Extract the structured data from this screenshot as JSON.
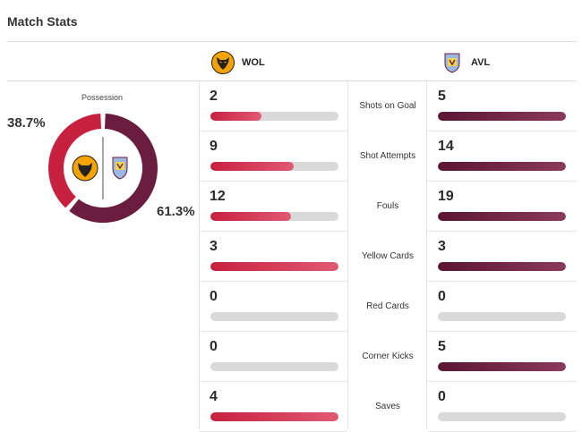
{
  "header": {
    "title": "Match Stats"
  },
  "teams": {
    "home": {
      "abbr": "WOL",
      "crest_icon": "wolves-crest-icon",
      "color": "#c8203f",
      "crest_bg": "#f5a300"
    },
    "away": {
      "abbr": "AVL",
      "crest_icon": "aston-villa-crest-icon",
      "color": "#6b1d3f",
      "crest_bg": "#9bb8e3"
    }
  },
  "possession": {
    "label": "Possession",
    "home_text": "38.7%",
    "away_text": "61.3%"
  },
  "stats": [
    {
      "label": "Shots on Goal",
      "home": "2",
      "away": "5"
    },
    {
      "label": "Shot Attempts",
      "home": "9",
      "away": "14"
    },
    {
      "label": "Fouls",
      "home": "12",
      "away": "19"
    },
    {
      "label": "Yellow Cards",
      "home": "3",
      "away": "3"
    },
    {
      "label": "Red Cards",
      "home": "0",
      "away": "0"
    },
    {
      "label": "Corner Kicks",
      "home": "0",
      "away": "5"
    },
    {
      "label": "Saves",
      "home": "4",
      "away": "0"
    }
  ],
  "chart_data": {
    "type": "bar",
    "title": "Match Stats",
    "categories": [
      "Shots on Goal",
      "Shot Attempts",
      "Fouls",
      "Yellow Cards",
      "Red Cards",
      "Corner Kicks",
      "Saves"
    ],
    "series": [
      {
        "name": "WOL",
        "values": [
          2,
          9,
          12,
          3,
          0,
          0,
          4
        ],
        "fill_fraction": [
          0.4,
          0.65,
          0.63,
          1.0,
          0.0,
          0.0,
          1.0
        ]
      },
      {
        "name": "AVL",
        "values": [
          5,
          14,
          19,
          3,
          0,
          5,
          0
        ],
        "fill_fraction": [
          1.0,
          1.0,
          1.0,
          1.0,
          0.0,
          1.0,
          0.0
        ]
      }
    ],
    "possession": {
      "type": "pie",
      "labels": [
        "WOL",
        "AVL"
      ],
      "values": [
        38.7,
        61.3
      ]
    }
  }
}
